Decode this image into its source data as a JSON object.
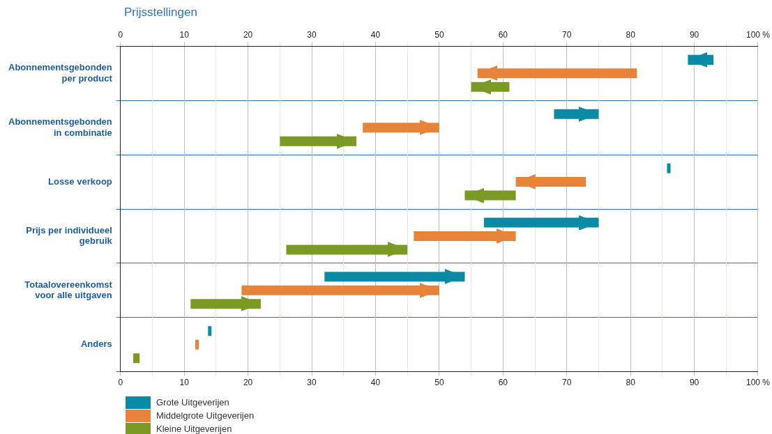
{
  "chart_data": {
    "type": "bar",
    "orientation": "horizontal",
    "title": "Prijsstellingen",
    "categories": [
      "Abonnementsgebonden\nper product",
      "Abonnementsgebonden\nin combinatie",
      "Losse verkoop",
      "Prijs per individueel\ngebruik",
      "Totaalovereenkomst\nvoor alle uitgaven",
      "Anders"
    ],
    "series": [
      {
        "name": "Grote Uitgeverijen",
        "color": "#0b8aa6",
        "base": [
          93,
          68,
          86,
          57,
          32,
          14
        ],
        "values": [
          -4,
          7,
          0,
          18,
          22,
          0
        ]
      },
      {
        "name": "Middelgrote Uitgeverijen",
        "color": "#e8833a",
        "base": [
          81,
          38,
          73,
          46,
          19,
          12
        ],
        "values": [
          -25,
          12,
          -11,
          16,
          31,
          0
        ]
      },
      {
        "name": "Kleine Uitgeverijen",
        "color": "#7b9a23",
        "base": [
          61,
          25,
          62,
          26,
          11,
          3
        ],
        "values": [
          -6,
          12,
          -8,
          19,
          11,
          -1
        ]
      }
    ],
    "xlim": [
      0,
      100
    ],
    "xticks": [
      0,
      {
        "value": 5,
        "label": null
      },
      10,
      {
        "value": 15,
        "label": null
      },
      20,
      {
        "value": 25,
        "label": null
      },
      30,
      {
        "value": 35,
        "label": null
      },
      40,
      {
        "value": 45,
        "label": null
      },
      50,
      {
        "value": 55,
        "label": null
      },
      60,
      {
        "value": 65,
        "label": null
      },
      70,
      {
        "value": 75,
        "label": null
      },
      80,
      {
        "value": 85,
        "label": null
      },
      90,
      {
        "value": 95,
        "label": null
      },
      {
        "value": 100,
        "label": "100 %"
      }
    ],
    "x2lim": [
      0,
      100
    ],
    "x2ticks": [
      0,
      {
        "value": 5,
        "label": null
      },
      10,
      {
        "value": 15,
        "label": null
      },
      20,
      {
        "value": 25,
        "label": null
      },
      30,
      {
        "value": 35,
        "label": null
      },
      40,
      {
        "value": 45,
        "label": null
      },
      50,
      {
        "value": 55,
        "label": null
      },
      60,
      {
        "value": 65,
        "label": null
      },
      70,
      {
        "value": 75,
        "label": null
      },
      80,
      {
        "value": 85,
        "label": null
      },
      90,
      {
        "value": 95,
        "label": null
      },
      {
        "value": 100,
        "label": "100 %"
      }
    ],
    "grid": true,
    "legend": "bottom left"
  }
}
